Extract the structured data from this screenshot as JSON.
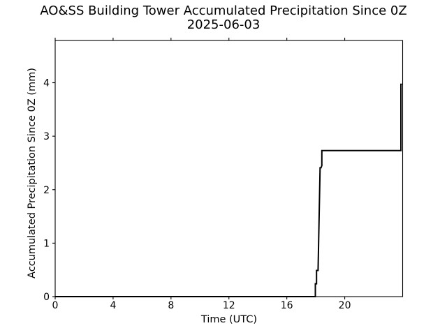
{
  "figure": {
    "title_line1": "AO&SS Building Tower Accumulated Precipitation Since 0Z",
    "title_line2": "2025-06-03",
    "background_color": "#ffffff",
    "foreground_color": "#000000"
  },
  "chart_data": {
    "type": "line",
    "title": "AO&SS Building Tower Accumulated Precipitation Since 0Z 2025-06-03",
    "xlabel": "Time (UTC)",
    "ylabel": "Accumulated Precipitation Since 0Z (mm)",
    "xlim": [
      0,
      24
    ],
    "ylim": [
      0,
      4.79
    ],
    "x_ticks": [
      0,
      4,
      8,
      12,
      16,
      20
    ],
    "x_tick_labels": [
      "0",
      "4",
      "8",
      "12",
      "16",
      "20"
    ],
    "y_ticks": [
      0,
      1,
      2,
      3,
      4
    ],
    "y_tick_labels": [
      "0",
      "1",
      "2",
      "3",
      "4"
    ],
    "grid": false,
    "legend": "none",
    "line_color": "#000000",
    "line_width": 2,
    "ticks_on": [
      "bottom",
      "top",
      "left"
    ],
    "series": [
      {
        "name": "accumulated_precipitation_mm",
        "points": [
          [
            0.0,
            0.0
          ],
          [
            17.97,
            0.0
          ],
          [
            17.97,
            0.24
          ],
          [
            18.05,
            0.24
          ],
          [
            18.05,
            0.49
          ],
          [
            18.16,
            0.49
          ],
          [
            18.3,
            2.41
          ],
          [
            18.36,
            2.41
          ],
          [
            18.42,
            2.45
          ],
          [
            18.42,
            2.73
          ],
          [
            23.88,
            2.73
          ],
          [
            23.88,
            3.97
          ],
          [
            23.95,
            3.97
          ]
        ]
      }
    ]
  }
}
